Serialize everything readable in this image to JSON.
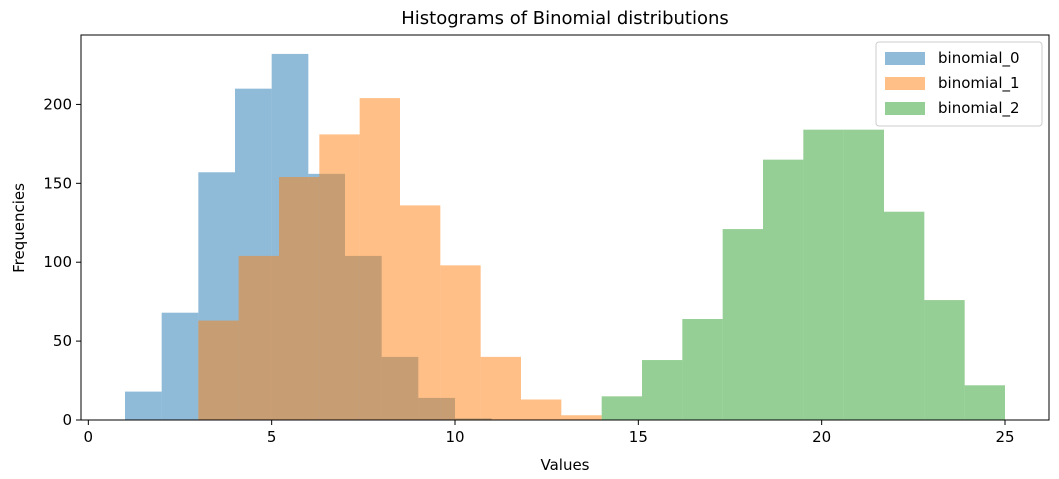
{
  "chart_data": {
    "type": "histogram",
    "title": "Histograms of Binomial distributions",
    "xlabel": "Values",
    "ylabel": "Frequencies",
    "xlim": [
      -0.2,
      26.2
    ],
    "ylim": [
      0,
      244
    ],
    "xticks": [
      0,
      5,
      10,
      15,
      20,
      25
    ],
    "yticks": [
      0,
      50,
      100,
      150,
      200
    ],
    "legend_position": "top-right",
    "grid": false,
    "series": [
      {
        "name": "binomial_0",
        "color": "#1f77b4",
        "opacity": 0.5,
        "bins": [
          {
            "x0": 1.0,
            "x1": 2.0,
            "count": 18
          },
          {
            "x0": 2.0,
            "x1": 3.0,
            "count": 68
          },
          {
            "x0": 3.0,
            "x1": 4.0,
            "count": 157
          },
          {
            "x0": 4.0,
            "x1": 5.0,
            "count": 210
          },
          {
            "x0": 5.0,
            "x1": 6.0,
            "count": 232
          },
          {
            "x0": 6.0,
            "x1": 7.0,
            "count": 156
          },
          {
            "x0": 7.0,
            "x1": 8.0,
            "count": 104
          },
          {
            "x0": 8.0,
            "x1": 9.0,
            "count": 40
          },
          {
            "x0": 9.0,
            "x1": 10.0,
            "count": 14
          },
          {
            "x0": 10.0,
            "x1": 11.0,
            "count": 1
          }
        ]
      },
      {
        "name": "binomial_1",
        "color": "#ff7f0e",
        "opacity": 0.5,
        "bins": [
          {
            "x0": 3.0,
            "x1": 4.1,
            "count": 63
          },
          {
            "x0": 4.1,
            "x1": 5.2,
            "count": 104
          },
          {
            "x0": 5.2,
            "x1": 6.3,
            "count": 154
          },
          {
            "x0": 6.3,
            "x1": 7.4,
            "count": 181
          },
          {
            "x0": 7.4,
            "x1": 8.5,
            "count": 204
          },
          {
            "x0": 8.5,
            "x1": 9.6,
            "count": 136
          },
          {
            "x0": 9.6,
            "x1": 10.7,
            "count": 98
          },
          {
            "x0": 10.7,
            "x1": 11.8,
            "count": 40
          },
          {
            "x0": 11.8,
            "x1": 12.9,
            "count": 13
          },
          {
            "x0": 12.9,
            "x1": 14.0,
            "count": 3
          }
        ]
      },
      {
        "name": "binomial_2",
        "color": "#2ca02c",
        "opacity": 0.5,
        "bins": [
          {
            "x0": 14.0,
            "x1": 15.1,
            "count": 15
          },
          {
            "x0": 15.1,
            "x1": 16.2,
            "count": 38
          },
          {
            "x0": 16.2,
            "x1": 17.3,
            "count": 64
          },
          {
            "x0": 17.3,
            "x1": 18.4,
            "count": 121
          },
          {
            "x0": 18.4,
            "x1": 19.5,
            "count": 165
          },
          {
            "x0": 19.5,
            "x1": 20.6,
            "count": 184
          },
          {
            "x0": 20.6,
            "x1": 21.7,
            "count": 184
          },
          {
            "x0": 21.7,
            "x1": 22.8,
            "count": 132
          },
          {
            "x0": 22.8,
            "x1": 23.9,
            "count": 76
          },
          {
            "x0": 23.9,
            "x1": 25.0,
            "count": 22
          }
        ]
      }
    ]
  }
}
